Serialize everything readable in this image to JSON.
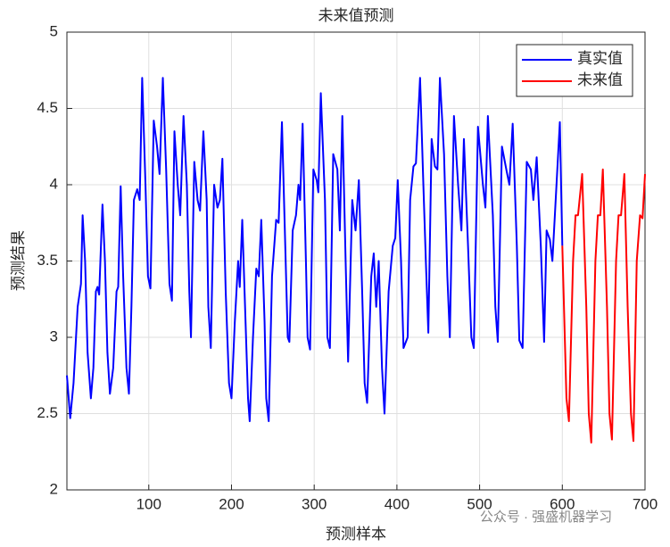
{
  "chart_data": {
    "type": "line",
    "title": "未来值预测",
    "x_label": "预测样本",
    "y_label": "预测结果",
    "xlim": [
      1,
      700
    ],
    "xticks": [
      100,
      200,
      300,
      400,
      500,
      600,
      700
    ],
    "ylim": [
      2,
      5
    ],
    "yticks": [
      2,
      2.5,
      3,
      3.5,
      4,
      4.5,
      5
    ],
    "grid": true,
    "legend": "northeast",
    "watermark": "公众号 · 强盛机器学习",
    "series": [
      {
        "name": "真实值",
        "color": "#0000ff",
        "x": [
          1,
          5,
          9,
          14,
          18,
          20,
          23,
          26,
          30,
          33,
          36,
          38,
          40,
          44,
          47,
          50,
          53,
          57,
          61,
          63,
          66,
          69,
          73,
          76,
          79,
          82,
          86,
          89,
          92,
          96,
          99,
          102,
          106,
          110,
          113,
          117,
          121,
          125,
          128,
          131,
          135,
          138,
          142,
          146,
          149,
          151,
          155,
          159,
          162,
          166,
          170,
          172,
          175,
          179,
          183,
          186,
          189,
          193,
          197,
          200,
          204,
          208,
          210,
          213,
          217,
          220,
          222,
          226,
          230,
          233,
          236,
          240,
          242,
          245,
          249,
          254,
          257,
          261,
          265,
          268,
          270,
          274,
          278,
          281,
          283,
          286,
          290,
          292,
          295,
          299,
          303,
          305,
          308,
          313,
          316,
          319,
          323,
          328,
          331,
          334,
          338,
          341,
          346,
          350,
          354,
          358,
          361,
          364,
          369,
          372,
          375,
          378,
          382,
          385,
          390,
          395,
          398,
          401,
          405,
          408,
          413,
          416,
          420,
          423,
          428,
          432,
          435,
          438,
          442,
          446,
          449,
          452,
          457,
          461,
          464,
          469,
          474,
          478,
          481,
          486,
          490,
          493,
          498,
          504,
          507,
          510,
          516,
          519,
          522,
          527,
          533,
          536,
          540,
          545,
          548,
          552,
          557,
          562,
          565,
          569,
          574,
          578,
          581,
          585,
          588,
          591,
          597,
          600
        ],
        "values": [
          2.75,
          2.47,
          2.7,
          3.2,
          3.35,
          3.8,
          3.5,
          2.9,
          2.6,
          2.8,
          3.3,
          3.33,
          3.28,
          3.87,
          3.5,
          2.9,
          2.63,
          2.8,
          3.3,
          3.33,
          3.99,
          3.4,
          2.8,
          2.63,
          3.2,
          3.9,
          3.97,
          3.9,
          4.7,
          4.0,
          3.4,
          3.32,
          4.42,
          4.25,
          4.07,
          4.7,
          4.1,
          3.35,
          3.24,
          4.35,
          4.0,
          3.8,
          4.45,
          4.0,
          3.3,
          3.0,
          4.15,
          3.9,
          3.83,
          4.35,
          3.9,
          3.2,
          2.93,
          4.0,
          3.85,
          3.9,
          4.17,
          3.3,
          2.7,
          2.6,
          3.1,
          3.5,
          3.33,
          3.77,
          3.1,
          2.6,
          2.45,
          3.0,
          3.45,
          3.4,
          3.77,
          3.1,
          2.6,
          2.45,
          3.4,
          3.77,
          3.75,
          4.41,
          3.6,
          3.0,
          2.97,
          3.7,
          3.8,
          4.0,
          3.9,
          4.4,
          3.5,
          3.0,
          2.92,
          4.1,
          4.03,
          3.95,
          4.6,
          3.9,
          3.0,
          2.93,
          4.2,
          4.1,
          3.7,
          4.45,
          3.5,
          2.84,
          3.9,
          3.7,
          4.03,
          3.3,
          2.7,
          2.57,
          3.4,
          3.55,
          3.2,
          3.5,
          2.8,
          2.5,
          3.3,
          3.6,
          3.65,
          4.03,
          3.5,
          2.93,
          3.0,
          3.9,
          4.12,
          4.14,
          4.7,
          4.0,
          3.5,
          3.03,
          4.3,
          4.12,
          4.1,
          4.7,
          4.2,
          3.4,
          3.0,
          4.45,
          4.0,
          3.7,
          4.3,
          3.6,
          3.0,
          2.93,
          4.38,
          4.0,
          3.85,
          4.45,
          3.8,
          3.2,
          2.97,
          4.25,
          4.08,
          4.0,
          4.4,
          3.6,
          2.98,
          2.93,
          4.15,
          4.1,
          3.9,
          4.18,
          3.6,
          2.97,
          3.7,
          3.64,
          3.5,
          3.8,
          4.41,
          3.6
        ]
      },
      {
        "name": "未来值",
        "color": "#ff0000",
        "x": [
          600,
          605,
          608,
          613,
          616,
          619,
          624,
          629,
          632,
          635,
          640,
          643,
          646,
          649,
          654,
          657,
          660,
          665,
          668,
          671,
          675,
          679,
          683,
          686,
          690,
          694,
          697,
          700
        ],
        "values": [
          3.6,
          2.6,
          2.45,
          3.5,
          3.8,
          3.8,
          4.07,
          3.2,
          2.5,
          2.31,
          3.5,
          3.8,
          3.8,
          4.1,
          3.2,
          2.5,
          2.33,
          3.5,
          3.8,
          3.8,
          4.07,
          3.2,
          2.5,
          2.32,
          3.5,
          3.8,
          3.78,
          4.07
        ]
      }
    ]
  }
}
